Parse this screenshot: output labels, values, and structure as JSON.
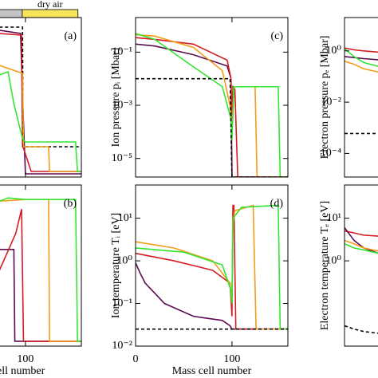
{
  "chart_data": [
    {
      "type": "line",
      "annotation": "(a)",
      "ylog": false,
      "xlim": [
        0,
        158
      ],
      "ylim": [
        0,
        1
      ],
      "xticks": [
        100
      ],
      "yticks": [],
      "regions": [
        {
          "color": "#c4c4c4",
          "x": [
            0,
            96.7
          ]
        },
        {
          "name": "dry air",
          "color": "#f8e45c",
          "x": [
            96.7,
            154.5
          ]
        }
      ],
      "series": [
        {
          "color": "#5c0b4f",
          "x": [
            73,
            95,
            97,
            100,
            158
          ],
          "values": [
            0.92,
            0.9,
            0.5,
            0.02,
            0.02
          ]
        },
        {
          "color": "#d41d22",
          "x": [
            73,
            96,
            97,
            98,
            106,
            158
          ],
          "values": [
            0.9,
            0.89,
            0.19,
            0.18,
            0.035,
            0.035
          ]
        },
        {
          "color": "#000000",
          "dash": true,
          "x": [
            73,
            97,
            97.5,
            158
          ],
          "values": [
            0.94,
            0.94,
            0.19,
            0.19
          ]
        },
        {
          "color": "#f39c1a",
          "x": [
            73,
            97,
            98,
            124,
            125,
            158
          ],
          "values": [
            0.7,
            0.65,
            0.19,
            0.19,
            0.035,
            0.035
          ]
        },
        {
          "color": "#33e633",
          "x": [
            73,
            82,
            88,
            97,
            100,
            152,
            154,
            158
          ],
          "values": [
            0.64,
            0.66,
            0.46,
            0.24,
            0.22,
            0.22,
            0.035,
            0.035
          ]
        }
      ]
    },
    {
      "type": "line",
      "annotation": "(b)",
      "ylog": false,
      "xlim": [
        0,
        158
      ],
      "ylim": [
        0,
        1
      ],
      "xticks": [
        100
      ],
      "yticks": [],
      "xlabel": "Mass cell number",
      "series": [
        {
          "color": "#5c0b4f",
          "x": [
            73,
            88,
            89,
            158
          ],
          "values": [
            0.6,
            0.6,
            0.03,
            0.03
          ]
        },
        {
          "color": "#d41d22",
          "x": [
            73,
            90,
            96,
            98,
            102,
            158
          ],
          "values": [
            0.47,
            0.7,
            0.85,
            0.03,
            0.03,
            0.03
          ]
        },
        {
          "color": "#f39c1a",
          "x": [
            73,
            100,
            124,
            125,
            158
          ],
          "values": [
            0.9,
            0.91,
            0.91,
            0.03,
            0.03
          ]
        },
        {
          "color": "#33e633",
          "x": [
            73,
            82,
            100,
            152,
            154,
            158
          ],
          "values": [
            0.9,
            0.92,
            0.91,
            0.91,
            0.03,
            0.03
          ]
        }
      ]
    },
    {
      "type": "line",
      "annotation": "(c)",
      "ylabel": "Ion pressure  pᵢ  [Mbar]",
      "ylog": true,
      "xlim": [
        0,
        158
      ],
      "ylim": [
        2e-06,
        2
      ],
      "xticks": [
        0,
        100
      ],
      "yticks": [
        {
          "value": 1e-05,
          "label": "10⁻⁵"
        },
        {
          "value": 0.001,
          "label": "10⁻³"
        },
        {
          "value": 0.1,
          "label": "10⁻¹"
        }
      ],
      "series": [
        {
          "color": "#5c0b4f",
          "x": [
            0,
            20,
            60,
            95,
            99,
            100,
            158
          ],
          "values": [
            0.2,
            0.17,
            0.08,
            0.03,
            0.01,
            2e-06,
            2e-06
          ]
        },
        {
          "color": "#d41d22",
          "x": [
            0,
            20,
            60,
            95,
            99,
            100,
            101,
            103,
            106,
            158
          ],
          "values": [
            0.35,
            0.3,
            0.2,
            0.05,
            0.01,
            0.0001,
            0.005,
            0.004,
            2e-06,
            2e-06
          ]
        },
        {
          "color": "#f39c1a",
          "x": [
            0,
            20,
            60,
            90,
            98,
            100,
            102,
            124,
            126,
            158
          ],
          "values": [
            0.45,
            0.4,
            0.15,
            0.02,
            0.001,
            0.0001,
            0.005,
            0.005,
            2e-06,
            2e-06
          ]
        },
        {
          "color": "#33e633",
          "x": [
            0,
            20,
            50,
            90,
            99,
            100,
            102,
            148,
            150,
            158
          ],
          "values": [
            0.5,
            0.3,
            0.05,
            0.005,
            0.0003,
            5e-05,
            0.005,
            0.005,
            2e-06,
            2e-06
          ]
        },
        {
          "color": "#000000",
          "dash": true,
          "x": [
            0,
            98,
            100,
            158
          ],
          "values": [
            0.01,
            0.01,
            2e-06,
            2e-06
          ]
        }
      ]
    },
    {
      "type": "line",
      "annotation": "(d)",
      "ylabel": "Ion temperature  Tᵢ  [eV]",
      "xlabel": "Mass cell number",
      "ylog": true,
      "xlim": [
        0,
        158
      ],
      "ylim": [
        0.01,
        60
      ],
      "xticks": [
        0,
        100
      ],
      "yticks": [
        {
          "value": 0.01,
          "label": "10⁻²"
        },
        {
          "value": 0.1,
          "label": "10⁻¹"
        },
        {
          "value": 1,
          "label": "10⁰"
        },
        {
          "value": 10,
          "label": "10¹"
        }
      ],
      "series": [
        {
          "color": "#5c0b4f",
          "x": [
            0,
            5,
            10,
            30,
            60,
            90,
            98,
            100,
            158
          ],
          "values": [
            0.9,
            0.5,
            0.3,
            0.1,
            0.05,
            0.04,
            0.03,
            0.025,
            0.025
          ]
        },
        {
          "color": "#d41d22",
          "x": [
            0,
            40,
            80,
            98,
            100,
            101,
            102,
            104,
            158
          ],
          "values": [
            1.5,
            1,
            0.6,
            0.3,
            0.05,
            20,
            20,
            0.025,
            0.025
          ]
        },
        {
          "color": "#f39c1a",
          "x": [
            0,
            40,
            80,
            98,
            100,
            101,
            103,
            122,
            125,
            158
          ],
          "values": [
            2.8,
            2,
            1,
            0.3,
            0.1,
            8,
            15,
            20,
            0.025,
            0.025
          ]
        },
        {
          "color": "#33e633",
          "x": [
            0,
            50,
            90,
            99,
            100,
            101,
            110,
            148,
            150,
            158
          ],
          "values": [
            2,
            1.6,
            0.8,
            0.2,
            0.1,
            10,
            18,
            20,
            0.025,
            0.025
          ]
        },
        {
          "color": "#000000",
          "dash": true,
          "x": [
            0,
            158
          ],
          "values": [
            0.025,
            0.025
          ]
        }
      ]
    },
    {
      "type": "line",
      "ylabel": "Electron pressure  pₑ  [Mbar]",
      "ylog": true,
      "xlim": [
        0,
        158
      ],
      "ylim": [
        1.2e-05,
        20
      ],
      "yticks": [
        {
          "value": 0.0001,
          "label": "10⁻⁴"
        },
        {
          "value": 0.01,
          "label": "10⁻²"
        },
        {
          "value": 1,
          "label": "10⁰"
        }
      ],
      "series": [
        {
          "color": "#d41d22",
          "x": [
            0,
            10,
            20,
            35
          ],
          "values": [
            1.3,
            1.1,
            1,
            0.9
          ]
        },
        {
          "color": "#5c0b4f",
          "x": [
            0,
            10,
            20,
            35
          ],
          "values": [
            0.6,
            0.55,
            0.5,
            0.45
          ]
        },
        {
          "color": "#f39c1a",
          "x": [
            0,
            10,
            20,
            35
          ],
          "values": [
            0.4,
            0.3,
            0.2,
            0.15
          ]
        },
        {
          "color": "#33e633",
          "x": [
            0,
            10,
            20,
            35
          ],
          "values": [
            1.2,
            0.6,
            0.35,
            0.25
          ]
        },
        {
          "color": "#000000",
          "dash": true,
          "x": [
            0,
            35
          ],
          "values": [
            0.0006,
            0.0006
          ]
        }
      ]
    },
    {
      "type": "line",
      "ylabel": "Electron temperature  Tₑ  [eV]",
      "ylog": true,
      "xlim": [
        0,
        158
      ],
      "ylim": [
        0.01,
        60
      ],
      "yticks": [
        {
          "value": 1,
          "label": "10⁰"
        },
        {
          "value": 10,
          "label": "10¹"
        }
      ],
      "series": [
        {
          "color": "#d41d22",
          "x": [
            0,
            10,
            20,
            35
          ],
          "values": [
            5,
            4.5,
            4,
            3.8
          ]
        },
        {
          "color": "#5c0b4f",
          "x": [
            0,
            10,
            20,
            35
          ],
          "values": [
            6,
            3,
            2,
            1.5
          ]
        },
        {
          "color": "#f39c1a",
          "x": [
            0,
            10,
            20,
            35
          ],
          "values": [
            3,
            2.5,
            2,
            1.7
          ]
        },
        {
          "color": "#33e633",
          "x": [
            0,
            10,
            20,
            35
          ],
          "values": [
            2.5,
            2,
            1.8,
            1.5
          ]
        },
        {
          "color": "#000000",
          "dash": true,
          "x": [
            0,
            10,
            20,
            35
          ],
          "values": [
            0.03,
            0.025,
            0.022,
            0.02
          ]
        }
      ]
    }
  ]
}
